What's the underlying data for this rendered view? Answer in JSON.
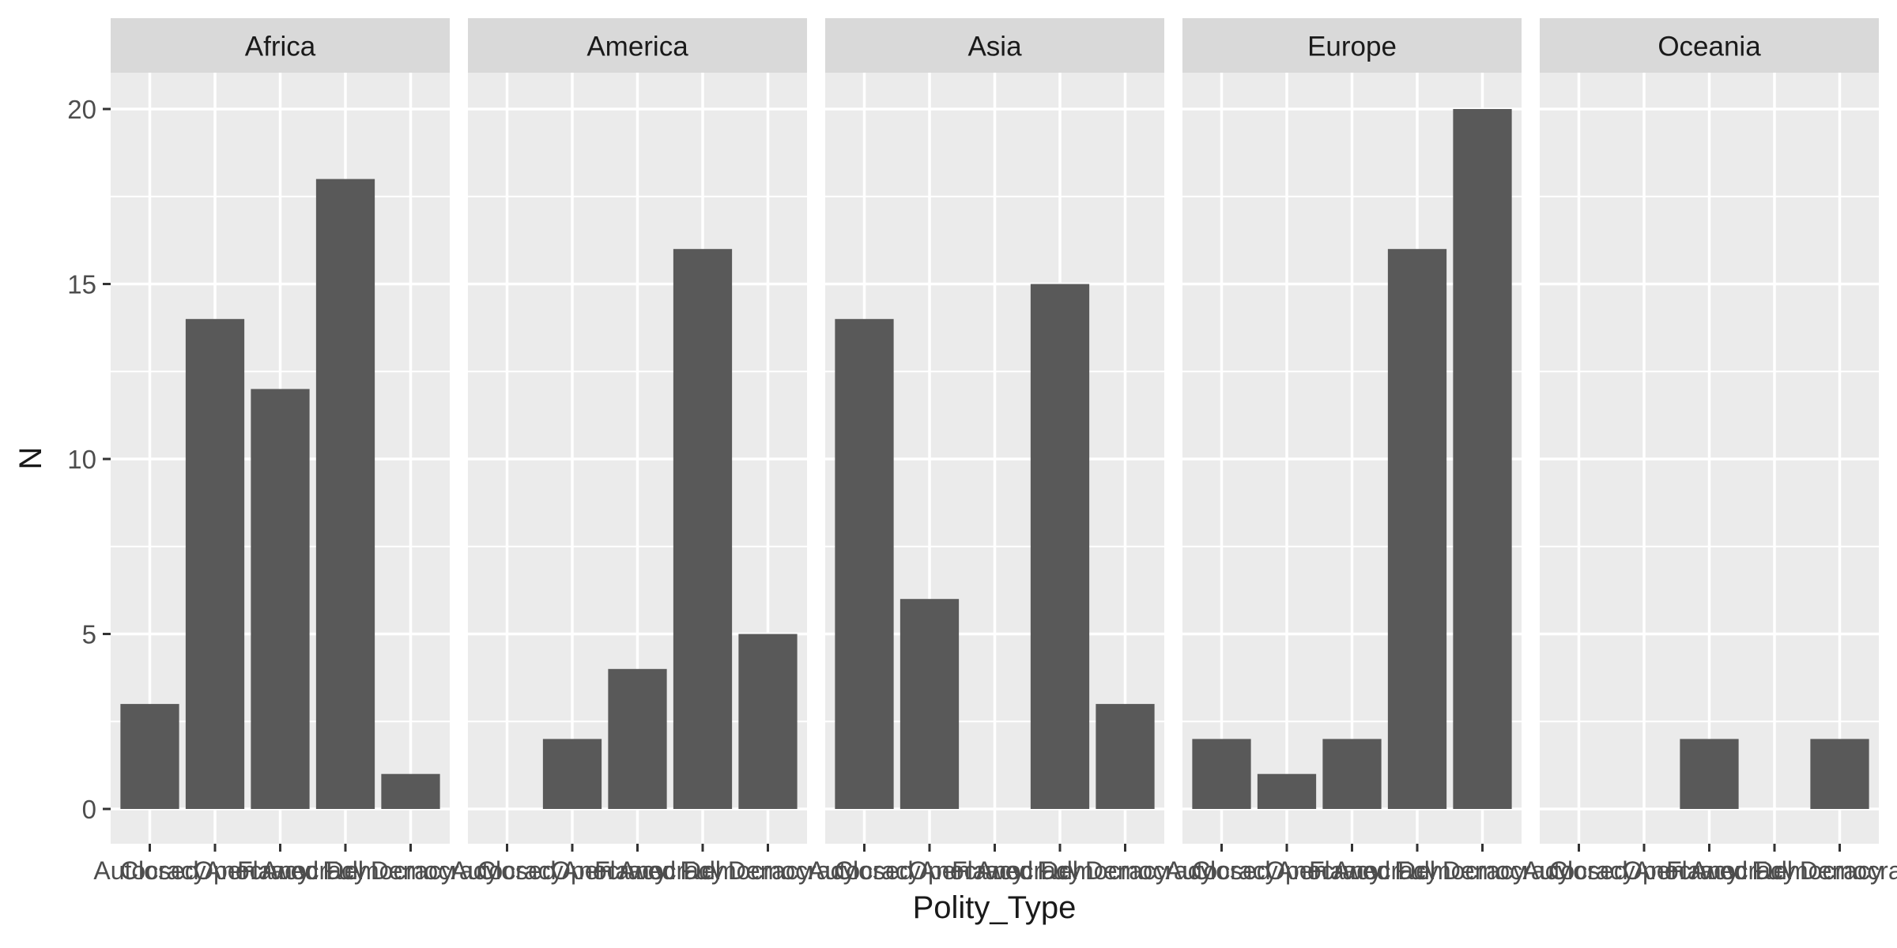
{
  "chart_data": {
    "type": "bar",
    "xlabel": "Polity_Type",
    "ylabel": "N",
    "ylim": [
      0,
      21
    ],
    "yticks": [
      0,
      5,
      10,
      15,
      20
    ],
    "categories": [
      "Autocracy",
      "Closed Anocracy",
      "Open Anocracy",
      "Flawed Democracy",
      "Full Democracy"
    ],
    "grid": true,
    "colors": {
      "panel_bg": "#ebebeb",
      "strip_bg": "#d9d9d9",
      "bar": "#595959",
      "grid": "#ffffff",
      "text": "#4d4d4d",
      "title_text": "#1a1a1a"
    },
    "facets": [
      {
        "name": "Africa",
        "values": [
          3,
          14,
          12,
          18,
          1
        ]
      },
      {
        "name": "America",
        "values": [
          0,
          2,
          4,
          16,
          5
        ]
      },
      {
        "name": "Asia",
        "values": [
          14,
          6,
          0,
          15,
          3
        ]
      },
      {
        "name": "Europe",
        "values": [
          2,
          1,
          2,
          16,
          20
        ]
      },
      {
        "name": "Oceania",
        "values": [
          0,
          0,
          2,
          0,
          2
        ]
      }
    ]
  }
}
